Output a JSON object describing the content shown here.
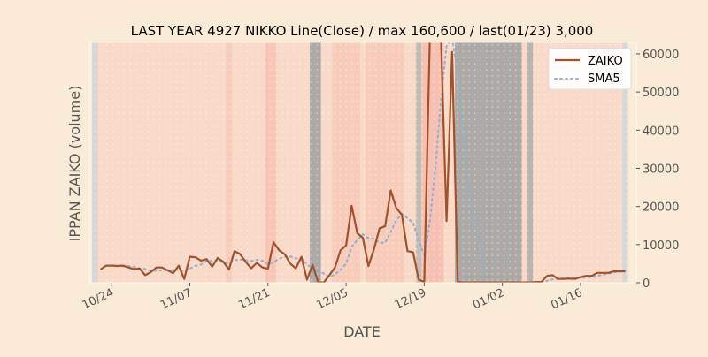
{
  "chart_data": {
    "type": "line",
    "title": "LAST YEAR 4927 NIKKO Line(Close) / max 160,600 / last(01/23) 3,000",
    "xlabel": "DATE",
    "ylabel": "IPPAN ZAIKO (volume)",
    "ylim": [
      0,
      63000
    ],
    "yticks": [
      0,
      10000,
      20000,
      30000,
      40000,
      50000,
      60000
    ],
    "ytick_labels": [
      "0",
      "10000",
      "20000",
      "30000",
      "40000",
      "50000",
      "60000"
    ],
    "xticks": [
      {
        "label": "10/24",
        "day": 3
      },
      {
        "label": "11/07",
        "day": 17
      },
      {
        "label": "11/21",
        "day": 31
      },
      {
        "label": "12/05",
        "day": 45
      },
      {
        "label": "12/19",
        "day": 59
      },
      {
        "label": "01/02",
        "day": 73
      },
      {
        "label": "01/16",
        "day": 87
      }
    ],
    "x_range": [
      0,
      94
    ],
    "grid": false,
    "legend_position": "top-right",
    "colors": {
      "zaiko": "#a0522d",
      "sma5": "#93b0d0",
      "band_red": "#f5b7a9",
      "band_gray": "#9e9e9e",
      "band_light": "#d7d7d7"
    },
    "series": [
      {
        "name": "ZAIKO",
        "style": "solid",
        "points": [
          [
            1,
            3500
          ],
          [
            2,
            4500
          ],
          [
            3,
            4500
          ],
          [
            4,
            4400
          ],
          [
            5,
            4500
          ],
          [
            6,
            4000
          ],
          [
            7,
            3600
          ],
          [
            8,
            3700
          ],
          [
            9,
            2000
          ],
          [
            10,
            2800
          ],
          [
            11,
            4000
          ],
          [
            12,
            4000
          ],
          [
            13,
            3300
          ],
          [
            14,
            2500
          ],
          [
            15,
            4500
          ],
          [
            16,
            1000
          ],
          [
            17,
            6800
          ],
          [
            18,
            6700
          ],
          [
            19,
            5800
          ],
          [
            20,
            6200
          ],
          [
            21,
            4200
          ],
          [
            22,
            6500
          ],
          [
            23,
            5500
          ],
          [
            24,
            3500
          ],
          [
            25,
            8300
          ],
          [
            26,
            7500
          ],
          [
            27,
            5500
          ],
          [
            28,
            3800
          ],
          [
            29,
            5200
          ],
          [
            30,
            4000
          ],
          [
            31,
            3700
          ],
          [
            32,
            10600
          ],
          [
            33,
            8500
          ],
          [
            34,
            7500
          ],
          [
            35,
            5000
          ],
          [
            36,
            3800
          ],
          [
            37,
            6800
          ],
          [
            38,
            800
          ],
          [
            39,
            4700
          ],
          [
            40,
            100
          ],
          [
            41,
            100
          ],
          [
            42,
            2000
          ],
          [
            43,
            4000
          ],
          [
            44,
            8500
          ],
          [
            45,
            9800
          ],
          [
            46,
            20200
          ],
          [
            47,
            13000
          ],
          [
            48,
            11800
          ],
          [
            49,
            4400
          ],
          [
            50,
            8800
          ],
          [
            51,
            14300
          ],
          [
            52,
            14800
          ],
          [
            53,
            24200
          ],
          [
            54,
            19600
          ],
          [
            55,
            17800
          ],
          [
            56,
            8300
          ],
          [
            57,
            8000
          ],
          [
            58,
            800
          ],
          [
            59,
            200
          ],
          [
            60,
            64000
          ],
          [
            61,
            64000
          ],
          [
            62,
            64000
          ],
          [
            63,
            16200
          ],
          [
            64,
            60500
          ],
          [
            65,
            200
          ],
          [
            66,
            100
          ],
          [
            67,
            100
          ],
          [
            68,
            100
          ],
          [
            69,
            100
          ],
          [
            70,
            100
          ],
          [
            71,
            100
          ],
          [
            72,
            100
          ],
          [
            73,
            100
          ],
          [
            74,
            100
          ],
          [
            75,
            100
          ],
          [
            76,
            100
          ],
          [
            77,
            100
          ],
          [
            78,
            100
          ],
          [
            79,
            200
          ],
          [
            80,
            200
          ],
          [
            81,
            1800
          ],
          [
            82,
            2000
          ],
          [
            83,
            1000
          ],
          [
            84,
            1000
          ],
          [
            85,
            1100
          ],
          [
            86,
            1000
          ],
          [
            87,
            1500
          ],
          [
            88,
            1800
          ],
          [
            89,
            1800
          ],
          [
            90,
            2600
          ],
          [
            91,
            2600
          ],
          [
            92,
            2600
          ],
          [
            93,
            3000
          ],
          [
            94,
            3000
          ],
          [
            95,
            3000
          ]
        ]
      },
      {
        "name": "SMA5",
        "style": "dotted",
        "points": [
          [
            5,
            4300
          ],
          [
            6,
            4400
          ],
          [
            7,
            4200
          ],
          [
            8,
            3800
          ],
          [
            9,
            3600
          ],
          [
            10,
            3200
          ],
          [
            11,
            3200
          ],
          [
            12,
            3300
          ],
          [
            13,
            3200
          ],
          [
            14,
            3300
          ],
          [
            15,
            3300
          ],
          [
            16,
            3000
          ],
          [
            17,
            3700
          ],
          [
            18,
            4400
          ],
          [
            19,
            4800
          ],
          [
            20,
            5700
          ],
          [
            21,
            5800
          ],
          [
            22,
            5900
          ],
          [
            23,
            5300
          ],
          [
            24,
            5100
          ],
          [
            25,
            5900
          ],
          [
            26,
            6100
          ],
          [
            27,
            5900
          ],
          [
            28,
            5700
          ],
          [
            29,
            6000
          ],
          [
            30,
            5800
          ],
          [
            31,
            4800
          ],
          [
            32,
            5400
          ],
          [
            33,
            6300
          ],
          [
            34,
            6900
          ],
          [
            35,
            6900
          ],
          [
            36,
            6400
          ],
          [
            37,
            6300
          ],
          [
            38,
            4800
          ],
          [
            39,
            3800
          ],
          [
            40,
            3100
          ],
          [
            41,
            2400
          ],
          [
            42,
            1500
          ],
          [
            43,
            2200
          ],
          [
            44,
            3400
          ],
          [
            45,
            5000
          ],
          [
            46,
            9400
          ],
          [
            47,
            11200
          ],
          [
            48,
            12700
          ],
          [
            49,
            11700
          ],
          [
            50,
            11500
          ],
          [
            51,
            10500
          ],
          [
            52,
            10500
          ],
          [
            53,
            13300
          ],
          [
            54,
            16400
          ],
          [
            55,
            18100
          ],
          [
            56,
            16900
          ],
          [
            57,
            15700
          ],
          [
            58,
            11300
          ],
          [
            59,
            7000
          ],
          [
            60,
            16000
          ],
          [
            61,
            30000
          ],
          [
            62,
            48000
          ],
          [
            63,
            62000
          ],
          [
            64,
            64000
          ],
          [
            65,
            55000
          ],
          [
            66,
            38000
          ],
          [
            67,
            25000
          ],
          [
            68,
            16000
          ],
          [
            69,
            12500
          ],
          [
            70,
            100
          ],
          [
            71,
            100
          ],
          [
            72,
            100
          ],
          [
            73,
            100
          ],
          [
            74,
            100
          ],
          [
            75,
            100
          ],
          [
            76,
            100
          ],
          [
            77,
            100
          ],
          [
            78,
            100
          ],
          [
            79,
            100
          ],
          [
            80,
            100
          ],
          [
            81,
            500
          ],
          [
            82,
            900
          ],
          [
            83,
            1000
          ],
          [
            84,
            1200
          ],
          [
            85,
            1300
          ],
          [
            86,
            1200
          ],
          [
            87,
            1300
          ],
          [
            88,
            1400
          ],
          [
            89,
            1500
          ],
          [
            90,
            1800
          ],
          [
            91,
            2100
          ],
          [
            92,
            2400
          ],
          [
            93,
            2700
          ],
          [
            94,
            2900
          ],
          [
            95,
            3000
          ]
        ]
      }
    ],
    "bands": [
      {
        "from": 0,
        "to": 1,
        "color": "band_light"
      },
      {
        "from": 1,
        "to": 24,
        "color": "band_red",
        "opacity": 0.35
      },
      {
        "from": 24,
        "to": 25,
        "color": "band_red",
        "opacity": 0.6
      },
      {
        "from": 25,
        "to": 31,
        "color": "band_red",
        "opacity": 0.35
      },
      {
        "from": 31,
        "to": 33,
        "color": "band_red",
        "opacity": 0.7
      },
      {
        "from": 33,
        "to": 39,
        "color": "band_red",
        "opacity": 0.35
      },
      {
        "from": 39,
        "to": 41,
        "color": "band_gray",
        "opacity": 0.85
      },
      {
        "from": 41,
        "to": 43,
        "color": "band_red",
        "opacity": 0.35
      },
      {
        "from": 43,
        "to": 48,
        "color": "band_red",
        "opacity": 0.6
      },
      {
        "from": 48,
        "to": 49,
        "color": "band_red",
        "opacity": 0.35
      },
      {
        "from": 49,
        "to": 56,
        "color": "band_red",
        "opacity": 0.6
      },
      {
        "from": 56,
        "to": 58,
        "color": "band_red",
        "opacity": 0.35
      },
      {
        "from": 58,
        "to": 59,
        "color": "band_gray",
        "opacity": 0.6
      },
      {
        "from": 59,
        "to": 63,
        "color": "band_red",
        "opacity": 0.8
      },
      {
        "from": 63,
        "to": 65,
        "color": "band_red",
        "opacity": 0.35
      },
      {
        "from": 65,
        "to": 77,
        "color": "band_gray",
        "opacity": 0.85
      },
      {
        "from": 77,
        "to": 78,
        "color": "band_red",
        "opacity": 0.35
      },
      {
        "from": 78,
        "to": 79,
        "color": "band_gray",
        "opacity": 0.7
      },
      {
        "from": 79,
        "to": 95,
        "color": "band_red",
        "opacity": 0.35
      },
      {
        "from": 95,
        "to": 96,
        "color": "band_light"
      }
    ]
  }
}
